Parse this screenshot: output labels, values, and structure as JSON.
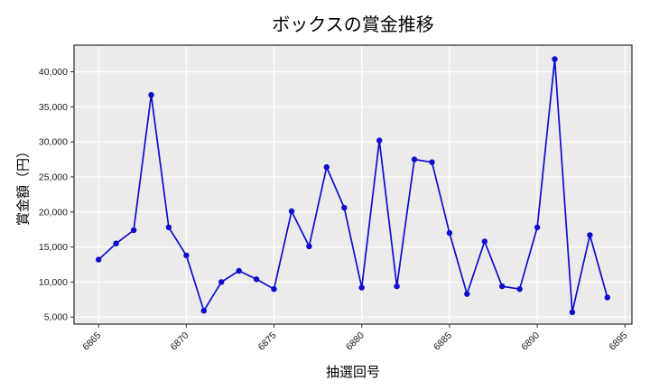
{
  "chart_data": {
    "type": "line",
    "title": "ボックスの賞金推移",
    "xlabel": "抽選回号",
    "ylabel": "賞金額（円）",
    "x": [
      6865,
      6866,
      6867,
      6868,
      6869,
      6870,
      6871,
      6872,
      6873,
      6874,
      6875,
      6876,
      6877,
      6878,
      6879,
      6880,
      6881,
      6882,
      6883,
      6884,
      6885,
      6886,
      6887,
      6888,
      6889,
      6890,
      6891,
      6892,
      6893,
      6894
    ],
    "values": [
      13200,
      15500,
      17400,
      36700,
      17800,
      13800,
      5900,
      10000,
      11600,
      10400,
      9000,
      20100,
      15100,
      26400,
      20600,
      9200,
      30200,
      9400,
      27500,
      27100,
      17000,
      8300,
      15800,
      9400,
      9000,
      17800,
      41800,
      5700,
      16700,
      7800
    ],
    "xticks": [
      6865,
      6870,
      6875,
      6880,
      6885,
      6890,
      6895
    ],
    "yticks": [
      5000,
      10000,
      15000,
      20000,
      25000,
      30000,
      35000,
      40000
    ],
    "xlim": [
      6863.6,
      6895.4
    ],
    "ylim": [
      4000,
      43800
    ],
    "grid": true,
    "legend": false,
    "marker": "circle",
    "colors": {
      "line": "#0d0dcd",
      "plot_bg": "#ebebeb",
      "grid": "#ffffff",
      "spine": "#2b2b2b",
      "text": "#1a1a1a"
    }
  }
}
